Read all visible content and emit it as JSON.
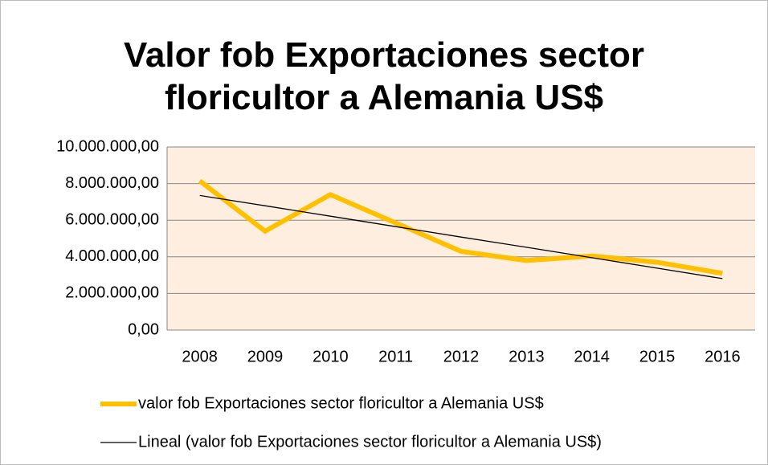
{
  "chart_data": {
    "type": "line",
    "title": "Valor fob Exportaciones sector floricultor a Alemania US$",
    "categories": [
      "2008",
      "2009",
      "2010",
      "2011",
      "2012",
      "2013",
      "2014",
      "2015",
      "2016"
    ],
    "series": [
      {
        "name": "valor fob Exportaciones sector floricultor a Alemania US$",
        "color": "#ffc000",
        "values": [
          8150000,
          5400000,
          7400000,
          5850000,
          4300000,
          3800000,
          4050000,
          3700000,
          3100000
        ]
      },
      {
        "name": "Lineal (valor fob Exportaciones sector floricultor a Alemania US$)",
        "color": "#000000",
        "values": [
          7350000,
          6790000,
          6220000,
          5650000,
          5080000,
          4520000,
          3950000,
          3380000,
          2810000
        ]
      }
    ],
    "ylim": [
      0,
      10000000
    ],
    "yticks": [
      {
        "value": 0,
        "label": "0,00"
      },
      {
        "value": 2000000,
        "label": "2.000.000,00"
      },
      {
        "value": 4000000,
        "label": "4.000.000,00"
      },
      {
        "value": 6000000,
        "label": "6.000.000,00"
      },
      {
        "value": 8000000,
        "label": "8.000.000,00"
      },
      {
        "value": 10000000,
        "label": "10.000.000,00"
      }
    ],
    "grid": true
  }
}
